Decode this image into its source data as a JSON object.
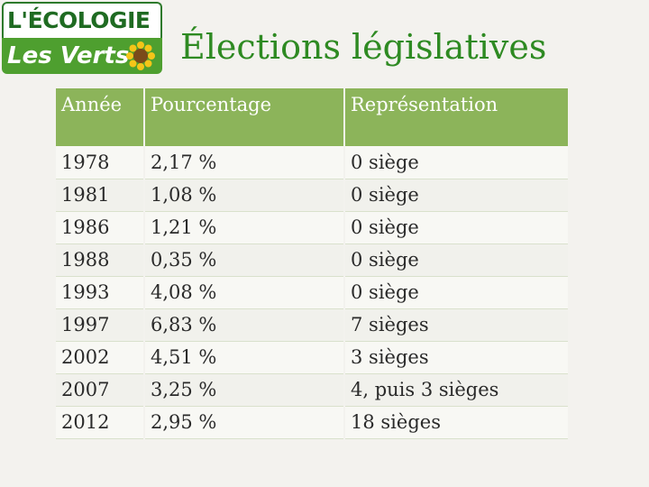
{
  "logo": {
    "line1": "L'ÉCOLOGIE",
    "line2": "Les Verts"
  },
  "title": "Élections législatives",
  "table": {
    "headers": [
      "Année",
      "Pourcentage",
      "Représentation"
    ],
    "rows": [
      [
        "1978",
        "2,17 %",
        "0 siège"
      ],
      [
        "1981",
        "1,08 %",
        "0 siège"
      ],
      [
        "1986",
        "1,21 %",
        "0 siège"
      ],
      [
        "1988",
        "0,35 %",
        "0 siège"
      ],
      [
        "1993",
        "4,08 %",
        "0 siège"
      ],
      [
        "1997",
        "6,83 %",
        "7 sièges"
      ],
      [
        "2002",
        "4,51 %",
        "3 sièges"
      ],
      [
        "2007",
        "3,25 %",
        "4, puis 3 sièges"
      ],
      [
        "2012",
        "2,95 %",
        "18 sièges"
      ]
    ]
  },
  "colors": {
    "header_bg": "#8cb45a",
    "title": "#2e8a22",
    "logo_green": "#4e9f2f"
  }
}
